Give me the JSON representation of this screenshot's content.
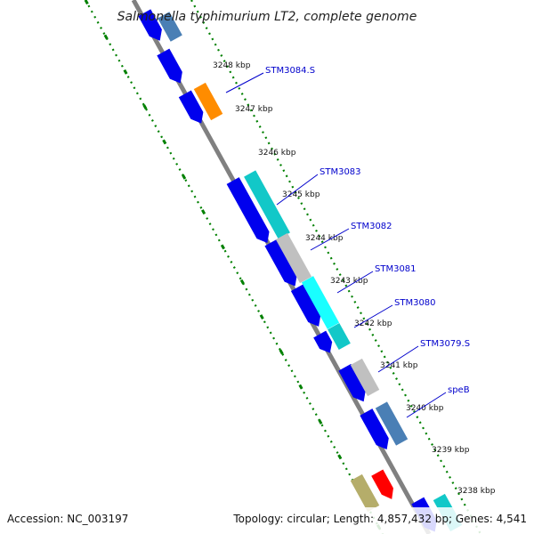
{
  "title": "Salmonella typhimurium LT2, complete genome",
  "footer": {
    "accession": "Accession: NC_003197",
    "summary": "Topology: circular; Length: 4,857,432 bp; Genes: 4,541"
  },
  "colors": {
    "backbone": "#808080",
    "tick": "#008000",
    "label": "#0000cc",
    "blue": "#0000ee",
    "steel": "#4a7fb5",
    "cyan": "#12c8c8",
    "aqua": "#19ffff",
    "gray": "#c0c0c0",
    "orange": "#ff8c00",
    "red": "#ff0000",
    "olive": "#b5ad6a"
  },
  "kbp_ticks": [
    "3248 kbp",
    "3247 kbp",
    "3246 kbp",
    "3245 kbp",
    "3244 kbp",
    "3243 kbp",
    "3242 kbp",
    "3241 kbp",
    "3240 kbp",
    "3239 kbp",
    "3238 kbp"
  ],
  "gene_labels": [
    "STM3084.S",
    "STM3083",
    "STM3082",
    "STM3081",
    "STM3080",
    "STM3079.S",
    "speB"
  ]
}
